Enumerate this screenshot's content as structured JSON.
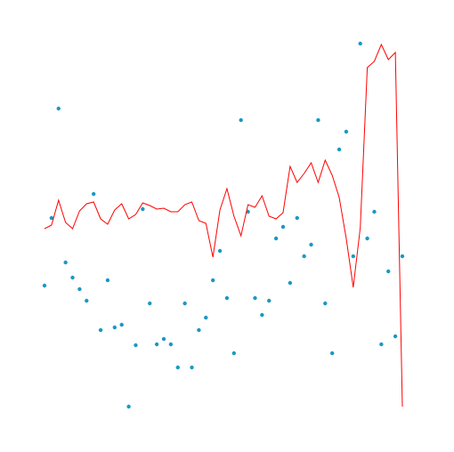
{
  "chart_data": {
    "type": "line",
    "x": [
      0,
      1,
      2,
      3,
      4,
      5,
      6,
      7,
      8,
      9,
      10,
      11,
      12,
      13,
      14,
      15,
      16,
      17,
      18,
      19,
      20,
      21,
      22,
      23,
      24,
      25,
      26,
      27,
      28,
      29,
      30,
      31,
      32,
      33,
      34,
      35,
      36,
      37,
      38,
      39,
      40,
      41,
      42,
      43,
      44,
      45,
      46,
      47,
      48,
      49,
      50,
      51
    ],
    "xlim": [
      0,
      51
    ],
    "ylim": [
      40,
      468
    ],
    "series": [
      {
        "type": "scatter",
        "color": "#1a98c4",
        "values": [
          187,
          263,
          386,
          213,
          196,
          183,
          170,
          290,
          137,
          193,
          140,
          143,
          51,
          120,
          273,
          167,
          121,
          127,
          121,
          95,
          167,
          95,
          137,
          151,
          193,
          226,
          173,
          111,
          373,
          270,
          173,
          154,
          170,
          240,
          253,
          190,
          263,
          220,
          233,
          373,
          167,
          111,
          340,
          360,
          220,
          459,
          240,
          270,
          121,
          203,
          130,
          220
        ]
      },
      {
        "type": "line",
        "color": "#ff0000",
        "values": [
          251,
          255,
          283,
          258,
          251,
          271,
          279,
          281,
          262,
          256,
          272,
          279,
          262,
          267,
          280,
          277,
          273,
          274,
          270,
          270,
          278,
          281,
          260,
          257,
          219,
          272,
          296,
          265,
          243,
          278,
          275,
          288,
          265,
          262,
          269,
          321,
          303,
          313,
          325,
          303,
          328,
          311,
          286,
          240,
          185,
          252,
          432,
          439,
          458,
          441,
          449,
          51
        ]
      }
    ]
  }
}
